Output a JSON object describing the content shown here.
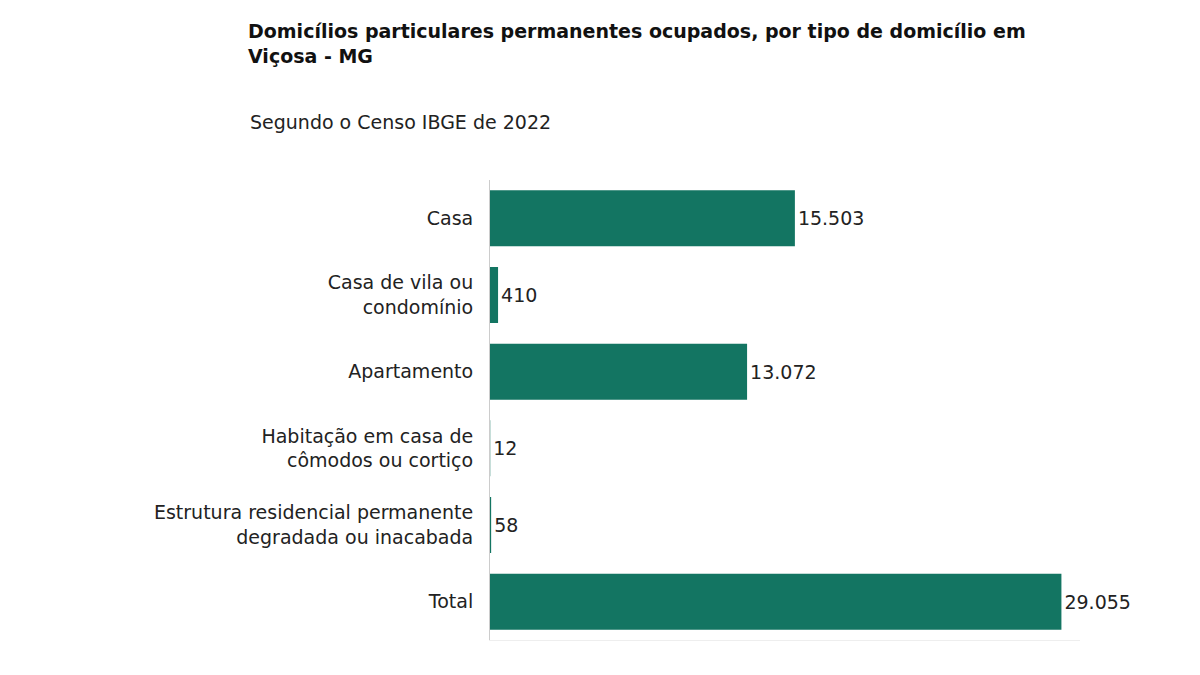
{
  "chart_data": {
    "type": "bar",
    "orientation": "horizontal",
    "title": "Domicílios particulares permanentes ocupados, por tipo de domicílio em\nViçosa - MG",
    "subtitle": "Segundo o Censo IBGE de 2022",
    "categories": [
      "Casa",
      "Casa de vila ou\ncondomínio",
      "Apartamento",
      "Habitação em casa de\ncômodos ou cortiço",
      "Estrutura residencial permanente\ndegradada ou inacabada",
      "Total"
    ],
    "values": [
      15503,
      410,
      13072,
      12,
      58,
      29055
    ],
    "value_labels": [
      "15.503",
      "410",
      "13.072",
      "12",
      "58",
      "29.055"
    ],
    "color": "#137562",
    "xlim": [
      0,
      30000
    ],
    "data_labels": true,
    "tick_labels": "y",
    "grid": false
  }
}
